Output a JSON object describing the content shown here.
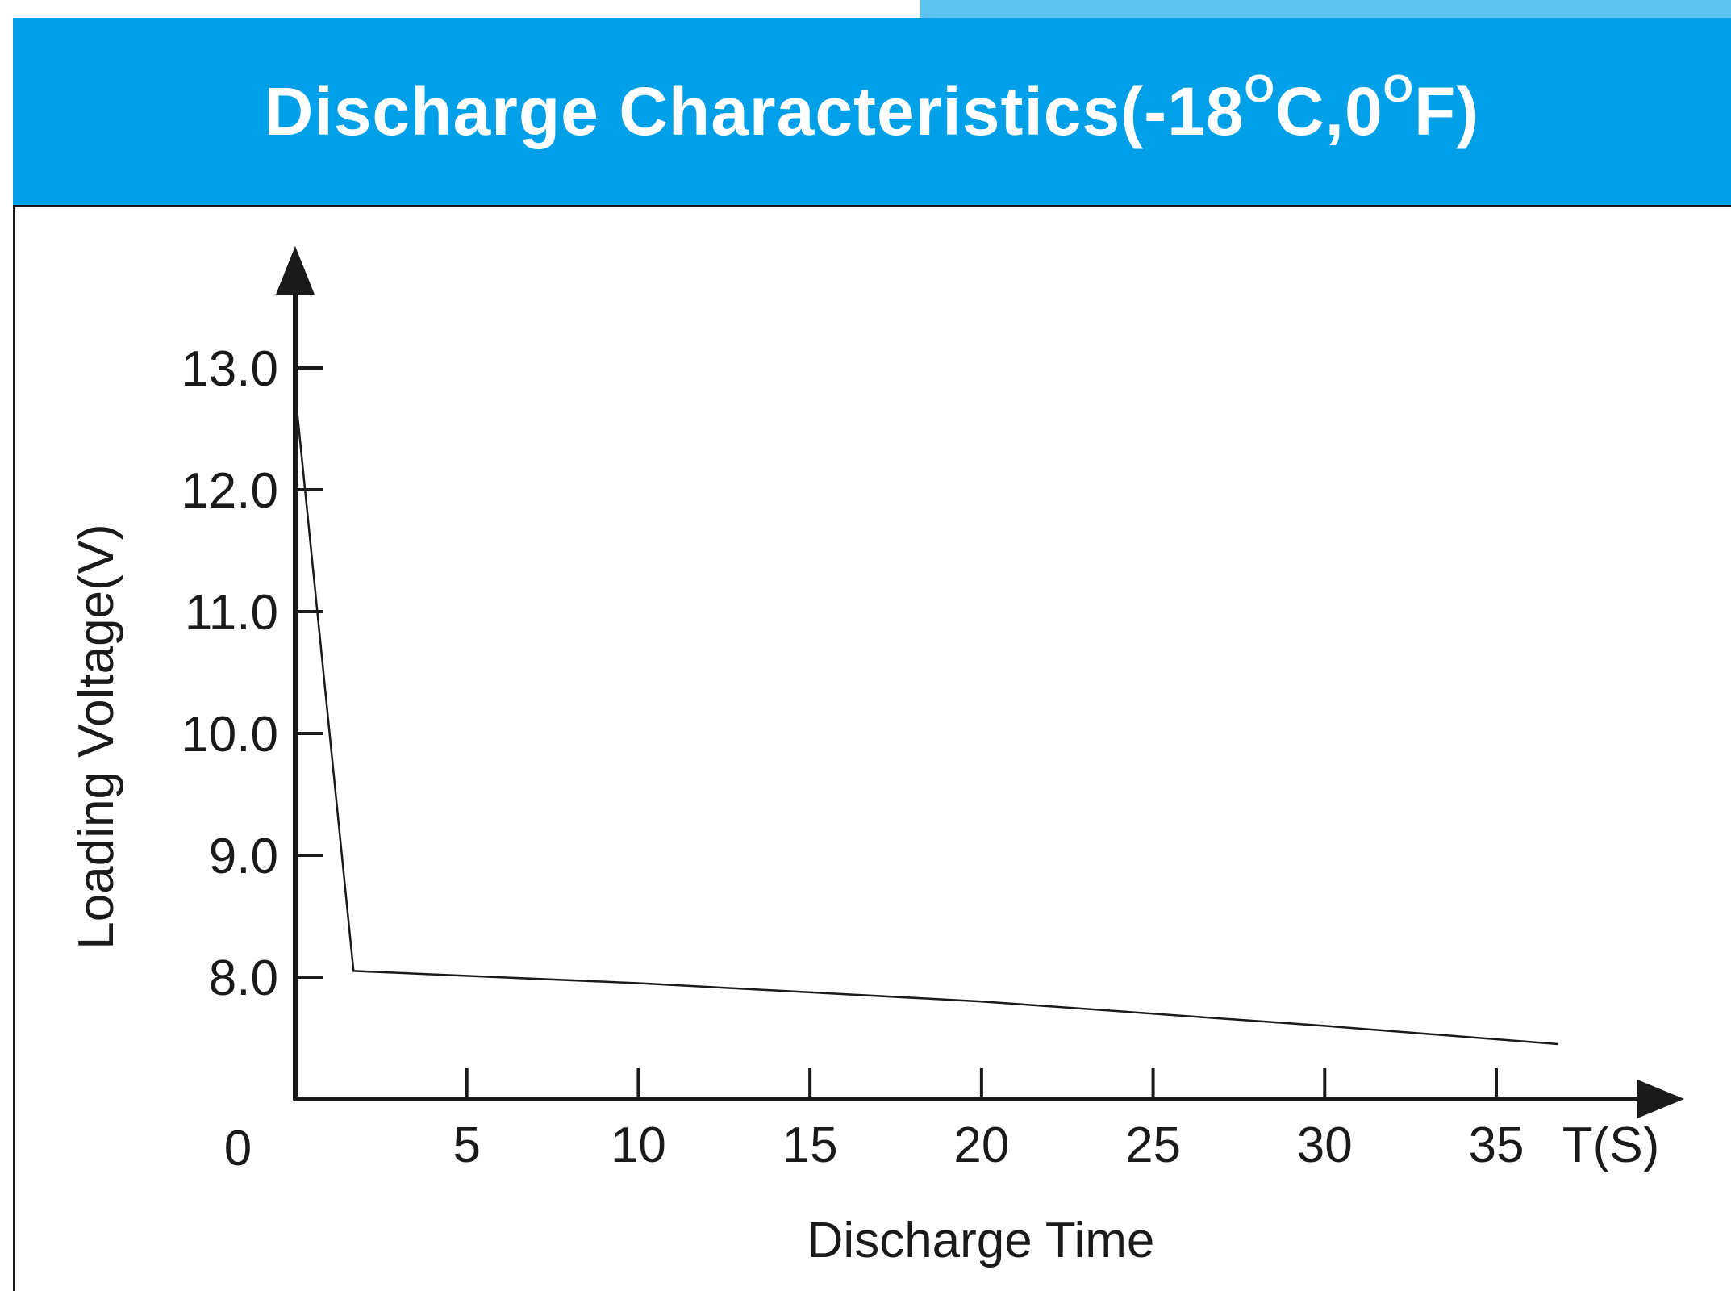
{
  "title": {
    "main": "Discharge Characteristics(-18",
    "deg1": "O",
    "mid": "C,0",
    "deg2": "O",
    "end": "F)"
  },
  "colors": {
    "header_blue": "#00a0e8",
    "strip_light_blue": "#5cc4f0",
    "ink": "#1a1a1a"
  },
  "chart_data": {
    "type": "line",
    "title": "Discharge Characteristics(-18°C,0°F)",
    "xlabel": "Discharge Time",
    "ylabel": "Loading Voltage(V)",
    "x_unit_label": "T(S)",
    "origin_label": "0",
    "xlim": [
      0,
      40
    ],
    "ylim": [
      7.0,
      14.0
    ],
    "x_ticks": [
      5,
      10,
      15,
      20,
      25,
      30,
      35
    ],
    "x_tick_labels": [
      "5",
      "10",
      "15",
      "20",
      "25",
      "30",
      "35"
    ],
    "y_ticks": [
      8.0,
      9.0,
      10.0,
      11.0,
      12.0,
      13.0
    ],
    "y_tick_labels": [
      "8.0",
      "9.0",
      "10.0",
      "11.0",
      "12.0",
      "13.0"
    ],
    "grid": false,
    "series": [
      {
        "x": [
          0,
          1.7,
          10,
          20,
          30,
          36.8
        ],
        "y": [
          12.8,
          8.05,
          7.95,
          7.8,
          7.6,
          7.45
        ]
      }
    ]
  }
}
